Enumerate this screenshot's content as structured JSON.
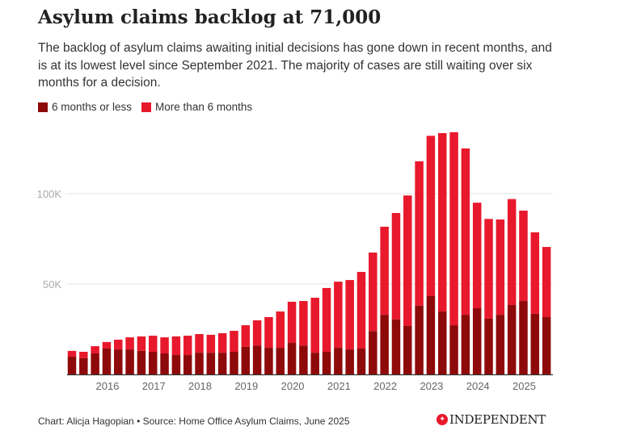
{
  "header": {
    "title": "Asylum claims backlog at 71,000",
    "subtitle": "The backlog of asylum claims awaiting initial decisions has gone down in recent months, and is at its lowest level since September 2021. The majority of cases are still waiting over six months for a decision."
  },
  "legend": [
    {
      "label": "6 months or less",
      "color": "#8e0a0a"
    },
    {
      "label": "More than 6 months",
      "color": "#e8192c"
    }
  ],
  "footer": {
    "credit": "Chart: Alicja Hagopian • Source: Home Office Asylum Claims, June 2025",
    "logo": "INDEPENDENT"
  },
  "chart_data": {
    "type": "bar",
    "stacked": true,
    "title": "Asylum claims backlog at 71,000",
    "xlabel": "",
    "ylabel": "",
    "ylim": [
      0,
      140000
    ],
    "yticks": [
      {
        "value": 50000,
        "label": "50K"
      },
      {
        "value": 100000,
        "label": "100K"
      }
    ],
    "xticks": [
      {
        "index": 3,
        "label": "2016"
      },
      {
        "index": 7,
        "label": "2017"
      },
      {
        "index": 11,
        "label": "2018"
      },
      {
        "index": 15,
        "label": "2019"
      },
      {
        "index": 19,
        "label": "2020"
      },
      {
        "index": 23,
        "label": "2021"
      },
      {
        "index": 27,
        "label": "2022"
      },
      {
        "index": 31,
        "label": "2023"
      },
      {
        "index": 35,
        "label": "2024"
      },
      {
        "index": 39,
        "label": "2025"
      }
    ],
    "grid": true,
    "legend_position": "top-left",
    "series": [
      {
        "name": "6 months or less",
        "color": "#8e0a0a",
        "values": [
          9800,
          9000,
          11600,
          14300,
          13800,
          13800,
          13000,
          12500,
          11600,
          10700,
          10700,
          12000,
          12000,
          12000,
          12500,
          15200,
          16000,
          14700,
          14700,
          17400,
          16000,
          12000,
          12500,
          14700,
          13800,
          14300,
          24000,
          33000,
          30400,
          26800,
          38000,
          43300,
          34800,
          27200,
          33000,
          36600,
          30800,
          33000,
          38400,
          40600,
          33500,
          31700
        ]
      },
      {
        "name": "More than 6 months",
        "color": "#e8192c",
        "values": [
          3200,
          3500,
          4000,
          3600,
          5400,
          6700,
          8000,
          8900,
          8900,
          10300,
          10700,
          10300,
          9900,
          10800,
          11600,
          12000,
          13900,
          17000,
          20100,
          22800,
          24600,
          30400,
          35300,
          36600,
          38400,
          42400,
          43400,
          48700,
          58900,
          72200,
          79900,
          88700,
          98700,
          106800,
          92000,
          58400,
          55200,
          52700,
          58600,
          50000,
          45100,
          38800
        ]
      }
    ]
  }
}
